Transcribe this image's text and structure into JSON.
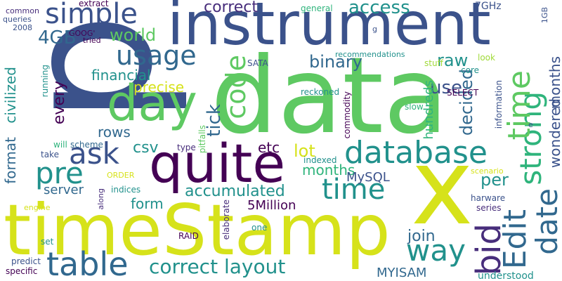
{
  "background": "#ffffff",
  "palette": {
    "navy": "#3b528b",
    "purple": "#440154",
    "teal": "#21918c",
    "green": "#5ec962",
    "yellow": "#d6e21a",
    "lime": "#a0da39",
    "blue": "#31688e",
    "seagreen": "#2fb47c",
    "indigo": "#472d7b"
  },
  "words": {
    "data": "data",
    "p": "p",
    "timeStamp": "timeStamp",
    "instrument": "instrument",
    "quite": "quite",
    "x": "x",
    "day": "day",
    "database": "database",
    "simple": "simple",
    "table": "table",
    "time_a": "time",
    "time_b": "time",
    "ask": "ask",
    "pre": "pre",
    "usage": "usage",
    "code": "code",
    "strong": "strong",
    "date": "date",
    "edit": "Edit",
    "bid": "bid",
    "way": "way",
    "correct_layout": "correct layout",
    "correct": "correct",
    "access": "access",
    "use": "use",
    "ghz": "7GHz",
    "gb4": "4GB",
    "world": "world",
    "binary": "binary",
    "raw": "raw",
    "financial": "financial",
    "precise": "precise",
    "decided": "decided",
    "every": "every",
    "format": "format",
    "civilized": "civilized",
    "rows": "rows",
    "csv": "csv",
    "etc": "etc",
    "lot": "lot",
    "months_a": "months",
    "months_b": "months",
    "per": "per",
    "wondered": "wondered",
    "mysql": "MySQL",
    "server": "server",
    "accumulated": "accumulated",
    "form": "form",
    "million": "5Million",
    "join": "join",
    "myisam": "MYISAM",
    "understood": "understood",
    "tick": "tick",
    "hundreds": "hundreds",
    "select": "SELECT",
    "information": "information",
    "slow": "slow",
    "commodity": "commodity",
    "reckoned": "reckoned",
    "indexed": "indexed",
    "sata": "SATA",
    "running": "running",
    "recommendations": "recommendations",
    "stuff": "stuff",
    "core": "core",
    "look": "look",
    "general": "general",
    "extract": "extract",
    "common": "common",
    "queries": "queries",
    "y2008": "2008",
    "goog": "GOOG'",
    "tried": "tried",
    "will": "will",
    "scheme": "scheme",
    "take": "take",
    "type": "type",
    "pitfalls": "pitfalls",
    "order": "ORDER",
    "indices": "indices",
    "along": "along",
    "engine": "engine",
    "set": "set",
    "raid": "RAID",
    "elaborate": "elaborate",
    "one": "one",
    "predict": "predict",
    "specific": "specific",
    "harware": "harware",
    "series": "series",
    "scenario": "scenario",
    "gb1": "1GB",
    "g": "g",
    "e": "e",
    "monthes": "monthes"
  }
}
